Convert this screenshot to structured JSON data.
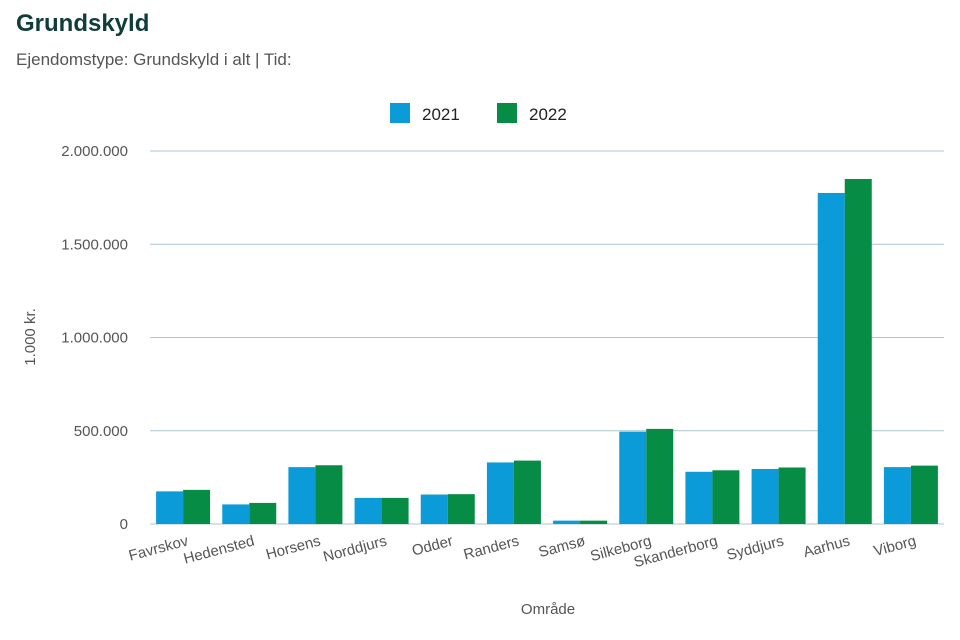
{
  "chart_data": {
    "type": "bar",
    "title": "Grundskyld",
    "subtitle": "Ejendomstype: Grundskyld i alt | Tid:",
    "xlabel": "Område",
    "ylabel": "1.000 kr.",
    "ylim": [
      0,
      2000000
    ],
    "yticks": [
      0,
      500000,
      1000000,
      1500000,
      2000000
    ],
    "ytick_labels": [
      "0",
      "500.000",
      "1.000.000",
      "1.500.000",
      "2.000.000"
    ],
    "grid": true,
    "legend_position": "top-center",
    "categories": [
      "Favrskov",
      "Hedensted",
      "Horsens",
      "Norddjurs",
      "Odder",
      "Randers",
      "Samsø",
      "Silkeborg",
      "Skanderborg",
      "Syddjurs",
      "Aarhus",
      "Viborg"
    ],
    "series": [
      {
        "name": "2021",
        "color": "#0c9bd9",
        "values": [
          175000,
          105000,
          305000,
          140000,
          158000,
          330000,
          18000,
          495000,
          280000,
          295000,
          1775000,
          305000
        ]
      },
      {
        "name": "2022",
        "color": "#078c45",
        "values": [
          183000,
          113000,
          315000,
          140000,
          160000,
          340000,
          18000,
          510000,
          288000,
          303000,
          1850000,
          313000
        ]
      }
    ]
  }
}
